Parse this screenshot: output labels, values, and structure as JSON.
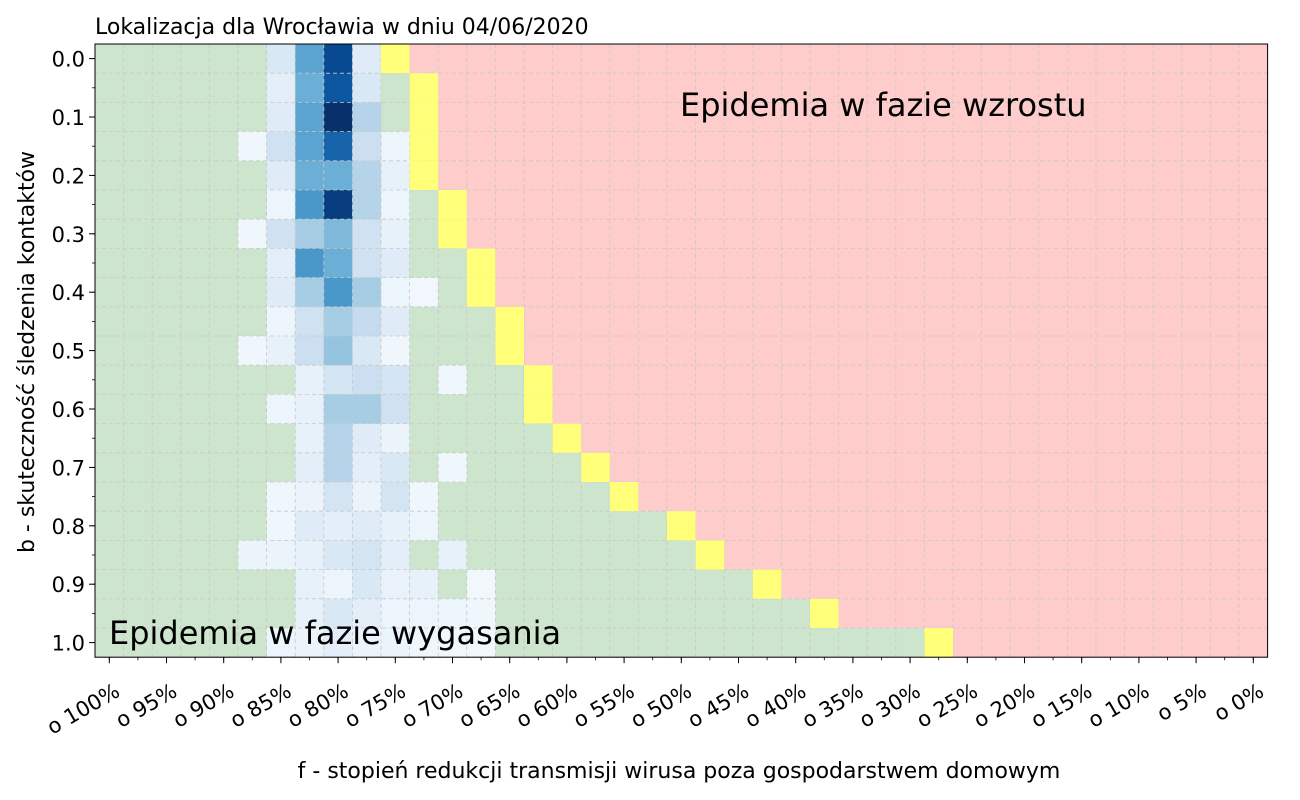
{
  "chart_data": {
    "type": "heatmap",
    "title": "Lokalizacja dla Wrocławia w dniu 04/06/2020",
    "xlabel": "f - stopień redukcji transmisji wirusa poza gospodarstwem domowym",
    "ylabel": "b - skuteczność śledzenia kontaktów",
    "x_tick_labels": [
      "o 100%",
      "o 95%",
      "o 90%",
      "o 85%",
      "o 80%",
      "o 75%",
      "o 70%",
      "o 65%",
      "o 60%",
      "o 55%",
      "o 50%",
      "o 45%",
      "o 40%",
      "o 35%",
      "o 30%",
      "o 25%",
      "o 20%",
      "o 15%",
      "o 10%",
      "o 5%",
      "o 0%"
    ],
    "y_tick_labels": [
      "0.0",
      "0.1",
      "0.2",
      "0.3",
      "0.4",
      "0.5",
      "0.6",
      "0.7",
      "0.8",
      "0.9",
      "1.0"
    ],
    "f_reduction_percent": [
      100,
      97.5,
      95,
      92.5,
      90,
      87.5,
      85,
      82.5,
      80,
      77.5,
      75,
      72.5,
      70,
      67.5,
      65,
      62.5,
      60,
      57.5,
      55,
      52.5,
      50,
      47.5,
      45,
      42.5,
      40,
      37.5,
      35,
      32.5,
      30,
      27.5,
      25,
      22.5,
      20,
      17.5,
      15,
      12.5,
      10,
      7.5,
      5,
      2.5,
      0
    ],
    "b_values": [
      0.0,
      0.05,
      0.1,
      0.15,
      0.2,
      0.25,
      0.3,
      0.35,
      0.4,
      0.45,
      0.5,
      0.55,
      0.6,
      0.65,
      0.7,
      0.75,
      0.8,
      0.85,
      0.9,
      0.95,
      1.0
    ],
    "boundary_f_percent": [
      77.5,
      75,
      75,
      75,
      75,
      72.5,
      72.5,
      70,
      70,
      67.5,
      67.5,
      65,
      65,
      62.5,
      60,
      57.5,
      52.5,
      50,
      45,
      40,
      30
    ],
    "density": [
      [
        0,
        0,
        0,
        0,
        0,
        0,
        0.15,
        0.55,
        0.9,
        0.12,
        0,
        0,
        0,
        0,
        0,
        0,
        0,
        0,
        0,
        0,
        0,
        0,
        0,
        0,
        0,
        0,
        0,
        0,
        0,
        0,
        0,
        0,
        0,
        0,
        0,
        0,
        0,
        0,
        0,
        0,
        0
      ],
      [
        0,
        0,
        0,
        0,
        0,
        0,
        0.1,
        0.5,
        0.85,
        0.15,
        0,
        0,
        0,
        0,
        0,
        0,
        0,
        0,
        0,
        0,
        0,
        0,
        0,
        0,
        0,
        0,
        0,
        0,
        0,
        0,
        0,
        0,
        0,
        0,
        0,
        0,
        0,
        0,
        0,
        0,
        0
      ],
      [
        0,
        0,
        0,
        0,
        0,
        0,
        0.12,
        0.55,
        1.0,
        0.3,
        0,
        0,
        0,
        0,
        0,
        0,
        0,
        0,
        0,
        0,
        0,
        0,
        0,
        0,
        0,
        0,
        0,
        0,
        0,
        0,
        0,
        0,
        0,
        0,
        0,
        0,
        0,
        0,
        0,
        0,
        0
      ],
      [
        0,
        0,
        0,
        0,
        0,
        0.04,
        0.2,
        0.55,
        0.8,
        0.22,
        0.05,
        0,
        0,
        0,
        0,
        0,
        0,
        0,
        0,
        0,
        0,
        0,
        0,
        0,
        0,
        0,
        0,
        0,
        0,
        0,
        0,
        0,
        0,
        0,
        0,
        0,
        0,
        0,
        0,
        0,
        0
      ],
      [
        0,
        0,
        0,
        0,
        0,
        0,
        0.12,
        0.5,
        0.5,
        0.3,
        0.08,
        0,
        0,
        0,
        0,
        0,
        0,
        0,
        0,
        0,
        0,
        0,
        0,
        0,
        0,
        0,
        0,
        0,
        0,
        0,
        0,
        0,
        0,
        0,
        0,
        0,
        0,
        0,
        0,
        0,
        0
      ],
      [
        0,
        0,
        0,
        0,
        0,
        0,
        0.05,
        0.6,
        0.95,
        0.3,
        0.05,
        0,
        0,
        0,
        0,
        0,
        0,
        0,
        0,
        0,
        0,
        0,
        0,
        0,
        0,
        0,
        0,
        0,
        0,
        0,
        0,
        0,
        0,
        0,
        0,
        0,
        0,
        0,
        0,
        0,
        0
      ],
      [
        0,
        0,
        0,
        0,
        0,
        0.04,
        0.2,
        0.35,
        0.45,
        0.2,
        0.08,
        0,
        0,
        0,
        0,
        0,
        0,
        0,
        0,
        0,
        0,
        0,
        0,
        0,
        0,
        0,
        0,
        0,
        0,
        0,
        0,
        0,
        0,
        0,
        0,
        0,
        0,
        0,
        0,
        0,
        0
      ],
      [
        0,
        0,
        0,
        0,
        0,
        0,
        0.1,
        0.6,
        0.5,
        0.2,
        0.12,
        0,
        0,
        0,
        0,
        0,
        0,
        0,
        0,
        0,
        0,
        0,
        0,
        0,
        0,
        0,
        0,
        0,
        0,
        0,
        0,
        0,
        0,
        0,
        0,
        0,
        0,
        0,
        0,
        0,
        0
      ],
      [
        0,
        0,
        0,
        0,
        0,
        0,
        0.12,
        0.35,
        0.6,
        0.35,
        0.05,
        0.03,
        0,
        0,
        0,
        0,
        0,
        0,
        0,
        0,
        0,
        0,
        0,
        0,
        0,
        0,
        0,
        0,
        0,
        0,
        0,
        0,
        0,
        0,
        0,
        0,
        0,
        0,
        0,
        0,
        0
      ],
      [
        0,
        0,
        0,
        0,
        0,
        0,
        0.05,
        0.2,
        0.35,
        0.25,
        0.12,
        0,
        0,
        0,
        0,
        0,
        0,
        0,
        0,
        0,
        0,
        0,
        0,
        0,
        0,
        0,
        0,
        0,
        0,
        0,
        0,
        0,
        0,
        0,
        0,
        0,
        0,
        0,
        0,
        0,
        0
      ],
      [
        0,
        0,
        0,
        0,
        0,
        0.04,
        0.08,
        0.22,
        0.4,
        0.15,
        0.04,
        0,
        0,
        0,
        0,
        0,
        0,
        0,
        0,
        0,
        0,
        0,
        0,
        0,
        0,
        0,
        0,
        0,
        0,
        0,
        0,
        0,
        0,
        0,
        0,
        0,
        0,
        0,
        0,
        0,
        0
      ],
      [
        0,
        0,
        0,
        0,
        0,
        0,
        0,
        0.08,
        0.18,
        0.22,
        0.18,
        0,
        0.04,
        0,
        0,
        0,
        0,
        0,
        0,
        0,
        0,
        0,
        0,
        0,
        0,
        0,
        0,
        0,
        0,
        0,
        0,
        0,
        0,
        0,
        0,
        0,
        0,
        0,
        0,
        0,
        0
      ],
      [
        0,
        0,
        0,
        0,
        0,
        0,
        0.05,
        0.08,
        0.35,
        0.35,
        0.2,
        0,
        0,
        0,
        0,
        0,
        0,
        0,
        0,
        0,
        0,
        0,
        0,
        0,
        0,
        0,
        0,
        0,
        0,
        0,
        0,
        0,
        0,
        0,
        0,
        0,
        0,
        0,
        0,
        0,
        0
      ],
      [
        0,
        0,
        0,
        0,
        0,
        0,
        0,
        0.08,
        0.3,
        0.12,
        0.06,
        0,
        0,
        0,
        0,
        0,
        0,
        0,
        0,
        0,
        0,
        0,
        0,
        0,
        0,
        0,
        0,
        0,
        0,
        0,
        0,
        0,
        0,
        0,
        0,
        0,
        0,
        0,
        0,
        0,
        0
      ],
      [
        0,
        0,
        0,
        0,
        0,
        0,
        0,
        0.1,
        0.3,
        0.1,
        0.15,
        0,
        0.04,
        0,
        0,
        0,
        0,
        0,
        0,
        0,
        0,
        0,
        0,
        0,
        0,
        0,
        0,
        0,
        0,
        0,
        0,
        0,
        0,
        0,
        0,
        0,
        0,
        0,
        0,
        0,
        0
      ],
      [
        0,
        0,
        0,
        0,
        0,
        0,
        0.04,
        0.06,
        0.18,
        0.06,
        0.18,
        0.04,
        0,
        0,
        0,
        0,
        0,
        0,
        0,
        0,
        0,
        0,
        0,
        0,
        0,
        0,
        0,
        0,
        0,
        0,
        0,
        0,
        0,
        0,
        0,
        0,
        0,
        0,
        0,
        0,
        0
      ],
      [
        0,
        0,
        0,
        0,
        0,
        0,
        0.04,
        0.12,
        0.1,
        0.12,
        0.08,
        0.05,
        0,
        0,
        0,
        0,
        0,
        0,
        0,
        0,
        0,
        0,
        0,
        0,
        0,
        0,
        0,
        0,
        0,
        0,
        0,
        0,
        0,
        0,
        0,
        0,
        0,
        0,
        0,
        0,
        0
      ],
      [
        0,
        0,
        0,
        0,
        0,
        0.06,
        0.06,
        0.08,
        0.15,
        0.18,
        0.1,
        0,
        0.08,
        0,
        0,
        0,
        0,
        0,
        0,
        0,
        0,
        0,
        0,
        0,
        0,
        0,
        0,
        0,
        0,
        0,
        0,
        0,
        0,
        0,
        0,
        0,
        0,
        0,
        0,
        0,
        0
      ],
      [
        0,
        0,
        0,
        0,
        0,
        0,
        0,
        0.08,
        0.05,
        0.15,
        0.07,
        0.08,
        0,
        0.03,
        0,
        0,
        0,
        0,
        0,
        0,
        0,
        0,
        0,
        0,
        0,
        0,
        0,
        0,
        0,
        0,
        0,
        0,
        0,
        0,
        0,
        0,
        0,
        0,
        0,
        0,
        0
      ],
      [
        0,
        0,
        0,
        0,
        0,
        0,
        0,
        0.08,
        0.15,
        0.1,
        0.05,
        0.05,
        0.05,
        0.04,
        0,
        0,
        0,
        0,
        0,
        0,
        0,
        0,
        0,
        0,
        0,
        0,
        0,
        0,
        0,
        0,
        0,
        0,
        0,
        0,
        0,
        0,
        0,
        0,
        0,
        0,
        0
      ],
      [
        0,
        0,
        0,
        0,
        0,
        0,
        0.05,
        0.06,
        0.1,
        0.06,
        0.06,
        0.04,
        0.03,
        0.03,
        0,
        0,
        0,
        0,
        0,
        0,
        0,
        0,
        0,
        0,
        0,
        0,
        0,
        0,
        0,
        0,
        0,
        0,
        0,
        0,
        0,
        0,
        0,
        0,
        0,
        0,
        0
      ]
    ],
    "regions": [
      {
        "label": "Epidemia w fazie wzrostu",
        "color": "#ffcccc"
      },
      {
        "label": "Epidemia w fazie wygasania",
        "color": "#cde4cd"
      }
    ],
    "boundary_color": "#ffff7a",
    "grid": true,
    "colormap": "Blues"
  }
}
